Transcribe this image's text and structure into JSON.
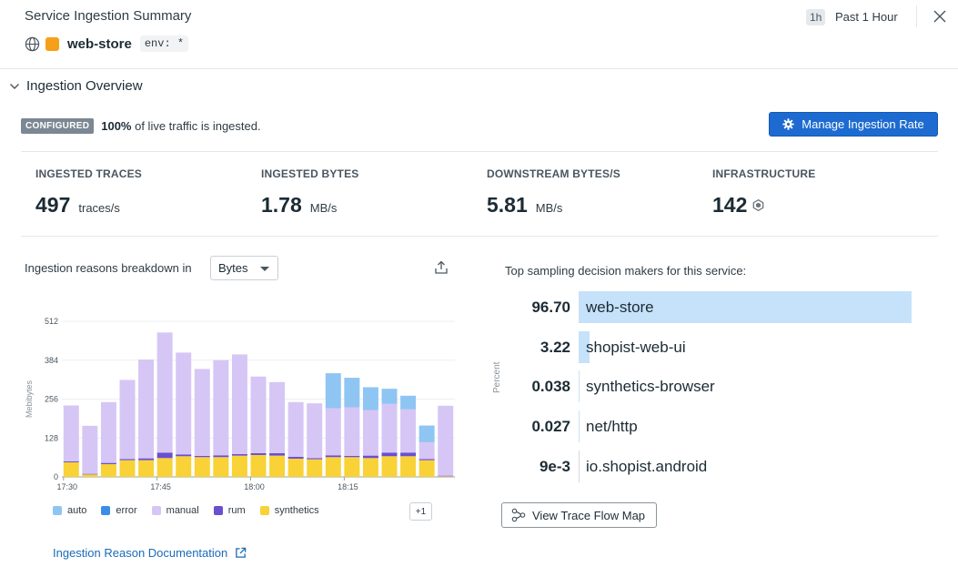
{
  "header": {
    "title": "Service Ingestion Summary",
    "service_name": "web-store",
    "env_tag": "env: *",
    "time_chip": "1h",
    "time_label": "Past 1 Hour",
    "service_color": "#f6a01a"
  },
  "overview": {
    "section_title": "Ingestion Overview",
    "badge": "CONFIGURED",
    "status_pct": "100%",
    "status_rest": " of live traffic is ingested.",
    "manage_button": "Manage Ingestion Rate",
    "accent_color": "#1d6bd1"
  },
  "stats": [
    {
      "label": "INGESTED TRACES",
      "value": "497",
      "unit": "traces/s"
    },
    {
      "label": "INGESTED BYTES",
      "value": "1.78",
      "unit": "MB/s"
    },
    {
      "label": "DOWNSTREAM BYTES/S",
      "value": "5.81",
      "unit": "MB/s"
    },
    {
      "label": "INFRASTRUCTURE",
      "value": "142",
      "unit": "",
      "icon": "hexagon-icon"
    }
  ],
  "breakdown": {
    "label": "Ingestion reasons breakdown in",
    "select_value": "Bytes",
    "legend": [
      {
        "name": "auto",
        "color": "#8fc5f2"
      },
      {
        "name": "error",
        "color": "#3a8ee6"
      },
      {
        "name": "manual",
        "color": "#d6c6f5"
      },
      {
        "name": "rum",
        "color": "#6a4fcf"
      },
      {
        "name": "synthetics",
        "color": "#f8d236"
      }
    ],
    "more_chip": "+1",
    "doc_link": "Ingestion Reason Documentation"
  },
  "chart_data": {
    "type": "bar",
    "stacked": true,
    "ylabel": "Mebibytes",
    "ylim": [
      0,
      512
    ],
    "yticks": [
      0,
      128,
      256,
      384,
      512
    ],
    "x_tick_labels": [
      "17:30",
      "17:45",
      "18:00",
      "18:15"
    ],
    "x_tick_bar_index": [
      0,
      5,
      10,
      15
    ],
    "grid": true,
    "series": [
      {
        "name": "synthetics",
        "color": "#f8d236",
        "values": [
          48,
          8,
          42,
          55,
          55,
          62,
          68,
          65,
          65,
          70,
          72,
          70,
          60,
          58,
          65,
          65,
          62,
          68,
          68,
          55,
          2
        ]
      },
      {
        "name": "rum",
        "color": "#6a4fcf",
        "values": [
          3,
          2,
          4,
          4,
          6,
          18,
          6,
          4,
          6,
          5,
          6,
          8,
          6,
          4,
          6,
          4,
          8,
          12,
          12,
          4,
          2
        ]
      },
      {
        "name": "manual",
        "color": "#d6c6f5",
        "values": [
          184,
          158,
          200,
          260,
          325,
          395,
          335,
          286,
          313,
          328,
          252,
          234,
          180,
          180,
          155,
          160,
          150,
          160,
          142,
          55,
          230
        ]
      },
      {
        "name": "auto",
        "color": "#8fc5f2",
        "values": [
          0,
          0,
          0,
          0,
          0,
          0,
          0,
          0,
          0,
          0,
          0,
          0,
          0,
          0,
          115,
          97,
          75,
          50,
          45,
          55,
          0
        ]
      }
    ]
  },
  "decision_makers": {
    "title": "Top sampling decision makers for this service:",
    "axis_label": "Percent",
    "items": [
      {
        "value": "96.70",
        "name": "web-store",
        "pct": 96.7
      },
      {
        "value": "3.22",
        "name": "shopist-web-ui",
        "pct": 3.22
      },
      {
        "value": "0.038",
        "name": "synthetics-browser",
        "pct": 0.038
      },
      {
        "value": "0.027",
        "name": "net/http",
        "pct": 0.027
      },
      {
        "value": "9e-3",
        "name": "io.shopist.android",
        "pct": 0.009
      }
    ],
    "flow_button": "View Trace Flow Map"
  }
}
